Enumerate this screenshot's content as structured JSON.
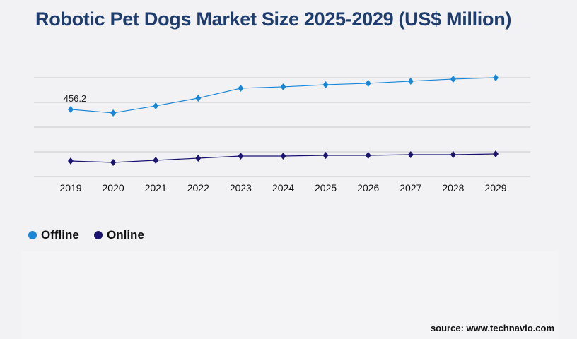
{
  "title": "Robotic Pet Dogs Market Size 2025-2029 (US$ Million)",
  "source": "source: www.technavio.com",
  "chart_data": {
    "type": "line",
    "title": "Robotic Pet Dogs Market Size 2025-2029 (US$ Million)",
    "xlabel": "",
    "ylabel": "",
    "categories": [
      "2019",
      "2020",
      "2021",
      "2022",
      "2023",
      "2024",
      "2025",
      "2026",
      "2027",
      "2028",
      "2029"
    ],
    "ylim": [
      0,
      672
    ],
    "grid": true,
    "legend_position": "bottom-left",
    "series": [
      {
        "name": "Offline",
        "color": "#1a86d6",
        "values": [
          456.2,
          432.2,
          480.2,
          533.0,
          600.3,
          609.9,
          624.3,
          633.9,
          648.3,
          662.7,
          672.3
        ]
      },
      {
        "name": "Online",
        "color": "#1a1470",
        "values": [
          105.6,
          96.0,
          110.4,
          124.9,
          139.3,
          139.3,
          144.1,
          144.1,
          148.9,
          148.9,
          153.7
        ]
      }
    ],
    "annotations": [
      {
        "series": "Offline",
        "category": "2019",
        "text": "456.2"
      }
    ]
  }
}
